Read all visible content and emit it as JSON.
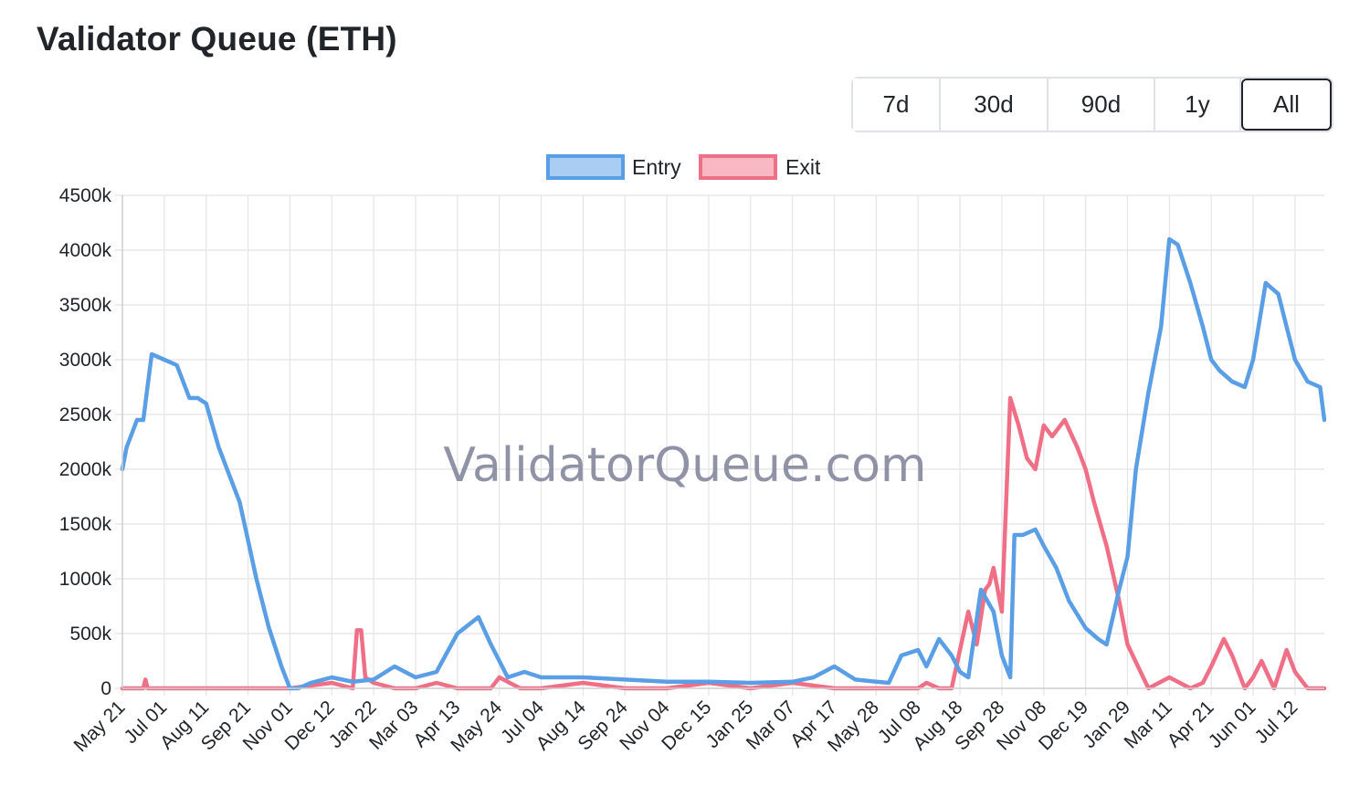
{
  "header": {
    "title": "Validator Queue (ETH)"
  },
  "range_buttons": [
    {
      "label": "7d",
      "active": false
    },
    {
      "label": "30d",
      "active": false
    },
    {
      "label": "90d",
      "active": false
    },
    {
      "label": "1y",
      "active": false
    },
    {
      "label": "All",
      "active": true
    }
  ],
  "watermark": "ValidatorQueue.com",
  "chart_data": {
    "type": "line",
    "title": "",
    "xlabel": "",
    "ylabel": "",
    "ylim": [
      0,
      4500
    ],
    "y_ticks": [
      0,
      500,
      1000,
      1500,
      2000,
      2500,
      3000,
      3500,
      4000,
      4500
    ],
    "y_tick_labels": [
      "0",
      "500k",
      "1000k",
      "1500k",
      "2000k",
      "2500k",
      "3000k",
      "3500k",
      "4000k",
      "4500k"
    ],
    "x_tick_labels": [
      "May 21",
      "Jul 01",
      "Aug 11",
      "Sep 21",
      "Nov 01",
      "Dec 12",
      "Jan 22",
      "Mar 03",
      "Apr 13",
      "May 24",
      "Jul 04",
      "Aug 14",
      "Sep 24",
      "Nov 04",
      "Dec 15",
      "Jan 25",
      "Mar 07",
      "Apr 17",
      "May 28",
      "Jul 08",
      "Aug 18",
      "Sep 28",
      "Nov 08",
      "Dec 19",
      "Jan 29",
      "Mar 11",
      "Apr 21",
      "Jun 01",
      "Jul 12"
    ],
    "x_range": [
      0,
      28.7
    ],
    "grid": true,
    "legend_position": "top",
    "series": [
      {
        "name": "Entry",
        "color": "#5a9fe6",
        "x": [
          0,
          0.1,
          0.2,
          0.35,
          0.5,
          0.7,
          1.0,
          1.3,
          1.6,
          1.8,
          2.0,
          2.3,
          2.5,
          2.8,
          3.0,
          3.2,
          3.5,
          3.8,
          4.0,
          4.2,
          4.5,
          5.0,
          5.5,
          6.0,
          6.5,
          7.0,
          7.5,
          8.0,
          8.5,
          8.8,
          9.2,
          9.6,
          10.0,
          11.0,
          12.0,
          13.0,
          14.0,
          15.0,
          16.0,
          16.5,
          17.0,
          17.5,
          18.0,
          18.3,
          18.6,
          19.0,
          19.2,
          19.5,
          19.8,
          20.0,
          20.2,
          20.5,
          20.8,
          21.0,
          21.2,
          21.3,
          21.5,
          21.8,
          22.0,
          22.3,
          22.6,
          23.0,
          23.3,
          23.5,
          23.8,
          24.0,
          24.2,
          24.5,
          24.8,
          25.0,
          25.2,
          25.5,
          25.8,
          26.0,
          26.2,
          26.5,
          26.8,
          27.0,
          27.3,
          27.6,
          27.8,
          28.0,
          28.3,
          28.6,
          28.7
        ],
        "values": [
          2000,
          2200,
          2300,
          2450,
          2450,
          3050,
          3000,
          2950,
          2650,
          2650,
          2600,
          2200,
          2000,
          1700,
          1350,
          1000,
          550,
          200,
          0,
          0,
          50,
          100,
          60,
          80,
          200,
          100,
          150,
          500,
          650,
          400,
          100,
          150,
          100,
          100,
          80,
          60,
          60,
          50,
          60,
          100,
          200,
          80,
          60,
          50,
          300,
          350,
          200,
          450,
          300,
          150,
          100,
          900,
          700,
          300,
          100,
          1400,
          1400,
          1450,
          1300,
          1100,
          800,
          550,
          450,
          400,
          900,
          1200,
          2000,
          2700,
          3300,
          4100,
          4050,
          3700,
          3300,
          3000,
          2900,
          2800,
          2750,
          3000,
          3700,
          3600,
          3300,
          3000,
          2800,
          2750,
          2450
        ]
      },
      {
        "name": "Exit",
        "color": "#ef6f87",
        "x": [
          0,
          0.5,
          0.55,
          0.6,
          1.0,
          1.5,
          2.0,
          3.0,
          4.0,
          5.0,
          5.5,
          5.6,
          5.7,
          5.8,
          6.0,
          6.5,
          7.0,
          7.5,
          8.0,
          8.8,
          9.0,
          9.5,
          10.0,
          11.0,
          12.0,
          13.0,
          14.0,
          15.0,
          16.0,
          17.0,
          18.0,
          18.8,
          19.0,
          19.2,
          19.5,
          19.8,
          20.2,
          20.4,
          20.6,
          20.7,
          20.8,
          21.0,
          21.2,
          21.4,
          21.6,
          21.8,
          22.0,
          22.2,
          22.5,
          22.8,
          23.0,
          23.2,
          23.5,
          23.8,
          24.0,
          24.5,
          25.0,
          25.5,
          25.8,
          26.0,
          26.3,
          26.5,
          26.8,
          27.0,
          27.2,
          27.5,
          27.8,
          28.0,
          28.3,
          28.7
        ],
        "values": [
          0,
          0,
          80,
          0,
          0,
          0,
          0,
          0,
          0,
          50,
          0,
          530,
          530,
          100,
          50,
          0,
          0,
          50,
          0,
          0,
          100,
          0,
          0,
          50,
          0,
          0,
          50,
          0,
          50,
          0,
          0,
          0,
          0,
          50,
          0,
          0,
          700,
          400,
          900,
          950,
          1100,
          700,
          2650,
          2400,
          2100,
          2000,
          2400,
          2300,
          2450,
          2200,
          2000,
          1700,
          1300,
          800,
          400,
          0,
          100,
          0,
          50,
          200,
          450,
          300,
          0,
          100,
          250,
          0,
          350,
          150,
          0,
          0
        ]
      }
    ]
  }
}
